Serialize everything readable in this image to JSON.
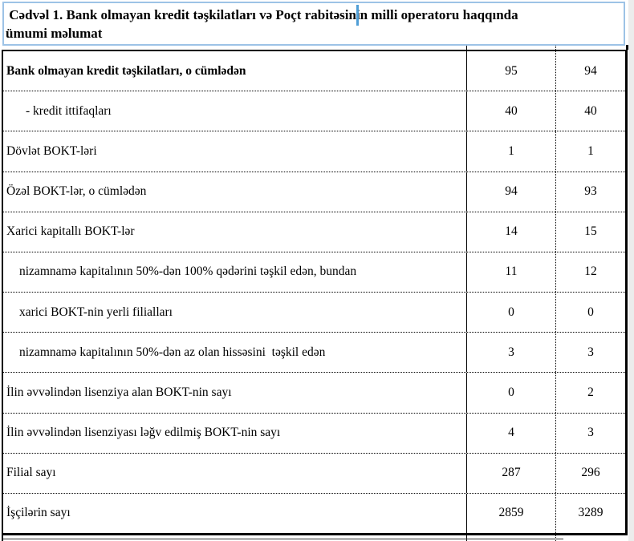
{
  "title": {
    "line1": " Cədvəl 1. Bank olmayan kredit təşkilatları və Poçt rabitəsinin milli operatoru haqqında",
    "line2": "ümumi məlumat"
  },
  "table": {
    "rows": [
      {
        "label": "Bank olmayan kredit təşkilatları, o cümlədən",
        "v1": "95",
        "v2": "94",
        "bold": true,
        "indent": 0
      },
      {
        "label": "- kredit ittifaqları",
        "v1": "40",
        "v2": "40",
        "bold": false,
        "indent": 2
      },
      {
        "label": "Dövlət BOKT-ləri",
        "v1": "1",
        "v2": "1",
        "bold": false,
        "indent": 0
      },
      {
        "label": "Özəl BOKT-lər, o cümlədən",
        "v1": "94",
        "v2": "93",
        "bold": false,
        "indent": 0
      },
      {
        "label": "Xarici kapitallı BOKT-lər",
        "v1": "14",
        "v2": "15",
        "bold": false,
        "indent": 0
      },
      {
        "label": "nizamnamə kapitalının 50%-dən 100% qədərini təşkil edən, bundan",
        "v1": "11",
        "v2": "12",
        "bold": false,
        "indent": 1
      },
      {
        "label": "xarici BOKT-nin yerli filialları",
        "v1": "0",
        "v2": "0",
        "bold": false,
        "indent": 1
      },
      {
        "label": "nizamnamə kapitalının 50%-dən az olan hissəsini  təşkil edən",
        "v1": "3",
        "v2": "3",
        "bold": false,
        "indent": 1
      },
      {
        "label": "İlin əvvəlindən lisenziya alan BOKT-nin sayı",
        "v1": "0",
        "v2": "2",
        "bold": false,
        "indent": 0
      },
      {
        "label": "İlin əvvəlindən lisenziyası ləğv edilmiş BOKT-nin sayı",
        "v1": "4",
        "v2": "3",
        "bold": false,
        "indent": 0
      },
      {
        "label": "Filial sayı",
        "v1": "287",
        "v2": "296",
        "bold": false,
        "indent": 0
      },
      {
        "label": "İşçilərin sayı",
        "v1": "2859",
        "v2": "3289",
        "bold": false,
        "indent": 0
      }
    ]
  },
  "colors": {
    "title_frame_border": "#9dc3e6",
    "text_caret": "#4f9ed6",
    "table_border": "#000000",
    "page_edge_gutter": "#ececec",
    "background": "#ffffff"
  }
}
